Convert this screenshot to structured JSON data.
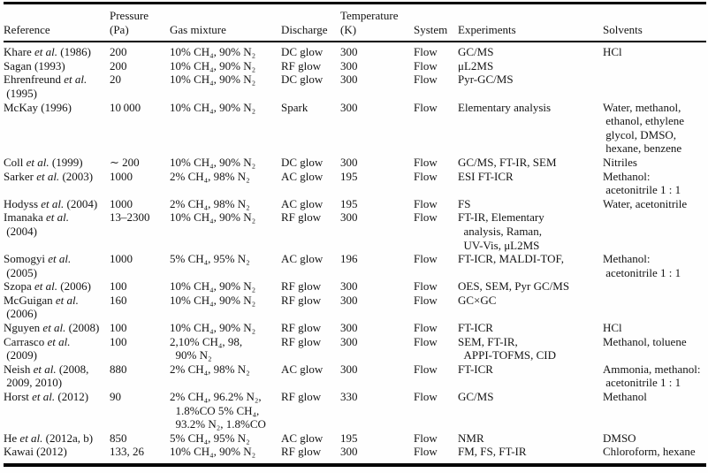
{
  "colors": {
    "rule": "#000000",
    "text": "#141414",
    "background": "#ffffff"
  },
  "table": {
    "headers": {
      "reference": "Reference",
      "pressure": "Pressure\n(Pa)",
      "gas": "Gas mixture",
      "discharge": "Discharge",
      "temperature": "Temperature\n(K)",
      "system": "System",
      "experiments": "Experiments",
      "solvents": "Solvents"
    },
    "rows": [
      {
        "reference": "Khare et al. (1986)",
        "pressure": "200",
        "gas": "10% CH₄, 90% N₂",
        "discharge": "DC glow",
        "temperature": "300",
        "system": "Flow",
        "experiments": "GC/MS",
        "solvents": "HCl"
      },
      {
        "reference": "Sagan (1993)",
        "pressure": "200",
        "gas": "10% CH₄, 90% N₂",
        "discharge": "RF glow",
        "temperature": "300",
        "system": "Flow",
        "experiments": "μL2MS",
        "solvents": ""
      },
      {
        "reference": "Ehrenfreund et al.\n (1995)",
        "pressure": "20",
        "gas": "10% CH₄, 90% N₂",
        "discharge": "DC glow",
        "temperature": "300",
        "system": "Flow",
        "experiments": "Pyr-GC/MS",
        "solvents": ""
      },
      {
        "reference": "McKay (1996)",
        "pressure": "10 000",
        "gas": "10% CH₄, 90% N₂",
        "discharge": "Spark",
        "temperature": "300",
        "system": "Flow",
        "experiments": "Elementary analysis",
        "solvents": "Water, methanol,\n ethanol, ethylene\n glycol, DMSO,\n hexane, benzene"
      },
      {
        "reference": "Coll et al. (1999)",
        "pressure": "∼ 200",
        "gas": "10% CH₄, 90% N₂",
        "discharge": "DC glow",
        "temperature": "300",
        "system": "Flow",
        "experiments": "GC/MS, FT-IR, SEM",
        "solvents": "Nitriles"
      },
      {
        "reference": "Sarker et al. (2003)",
        "pressure": "1000",
        "gas": "2% CH₄, 98% N₂",
        "discharge": "AC glow",
        "temperature": "195",
        "system": "Flow",
        "experiments": "ESI FT-ICR",
        "solvents": "Methanol:\n acetonitrile 1 : 1"
      },
      {
        "reference": "Hodyss et al. (2004)",
        "pressure": "1000",
        "gas": "2% CH₄, 98% N₂",
        "discharge": "AC glow",
        "temperature": "195",
        "system": "Flow",
        "experiments": "FS",
        "solvents": "Water, acetonitrile"
      },
      {
        "reference": "Imanaka et al.\n (2004)",
        "pressure": "13–2300",
        "gas": "10% CH₄, 90% N₂",
        "discharge": "RF glow",
        "temperature": "300",
        "system": "Flow",
        "experiments": "FT-IR, Elementary\n  analysis, Raman,\n  UV-Vis, μL2MS",
        "solvents": ""
      },
      {
        "reference": "Somogyi et al.\n (2005)",
        "pressure": "1000",
        "gas": "5% CH₄, 95% N₂",
        "discharge": "AC glow",
        "temperature": "196",
        "system": "Flow",
        "experiments": "FT-ICR, MALDI-TOF,",
        "solvents": "Methanol:\n acetonitrile 1 : 1"
      },
      {
        "reference": "Szopa et al. (2006)",
        "pressure": "100",
        "gas": "10% CH₄, 90% N₂",
        "discharge": "RF glow",
        "temperature": "300",
        "system": "Flow",
        "experiments": "OES, SEM, Pyr GC/MS",
        "solvents": ""
      },
      {
        "reference": "McGuigan et al.\n (2006)",
        "pressure": "160",
        "gas": "10% CH₄, 90% N₂",
        "discharge": "RF glow",
        "temperature": "300",
        "system": "Flow",
        "experiments": "GC×GC",
        "solvents": ""
      },
      {
        "reference": "Nguyen et al. (2008)",
        "pressure": "100",
        "gas": "10% CH₄, 90% N₂",
        "discharge": "RF glow",
        "temperature": "300",
        "system": "Flow",
        "experiments": "FT-ICR",
        "solvents": "HCl"
      },
      {
        "reference": "Carrasco et al.\n (2009)",
        "pressure": "100",
        "gas": "2,10% CH₄, 98,\n  90% N₂",
        "discharge": "RF glow",
        "temperature": "300",
        "system": "Flow",
        "experiments": "SEM, FT-IR,\n  APPI-TOFMS, CID",
        "solvents": "Methanol, toluene"
      },
      {
        "reference": "Neish et al. (2008,\n 2009, 2010)",
        "pressure": "880",
        "gas": "2% CH₄, 98% N₂",
        "discharge": "AC glow",
        "temperature": "300",
        "system": "Flow",
        "experiments": "FT-ICR",
        "solvents": "Ammonia, methanol:\n acetonitrile 1 : 1"
      },
      {
        "reference": "Horst et al. (2012)",
        "pressure": "90",
        "gas": "2% CH₄, 96.2% N₂,\n  1.8%CO 5% CH₄,\n  93.2% N₂, 1.8%CO",
        "discharge": "RF glow",
        "temperature": "330",
        "system": "Flow",
        "experiments": "GC/MS",
        "solvents": "Methanol"
      },
      {
        "reference": "He et al. (2012a, b)",
        "pressure": "850",
        "gas": "5% CH₄, 95% N₂",
        "discharge": "AC glow",
        "temperature": "195",
        "system": "Flow",
        "experiments": "NMR",
        "solvents": "DMSO"
      },
      {
        "reference": "Kawai (2012)",
        "pressure": "133, 26",
        "gas": "10% CH₄, 90% N₂",
        "discharge": "RF glow",
        "temperature": "300",
        "system": "Flow",
        "experiments": "FM, FS, FT-IR",
        "solvents": "Chloroform, hexane"
      }
    ]
  }
}
